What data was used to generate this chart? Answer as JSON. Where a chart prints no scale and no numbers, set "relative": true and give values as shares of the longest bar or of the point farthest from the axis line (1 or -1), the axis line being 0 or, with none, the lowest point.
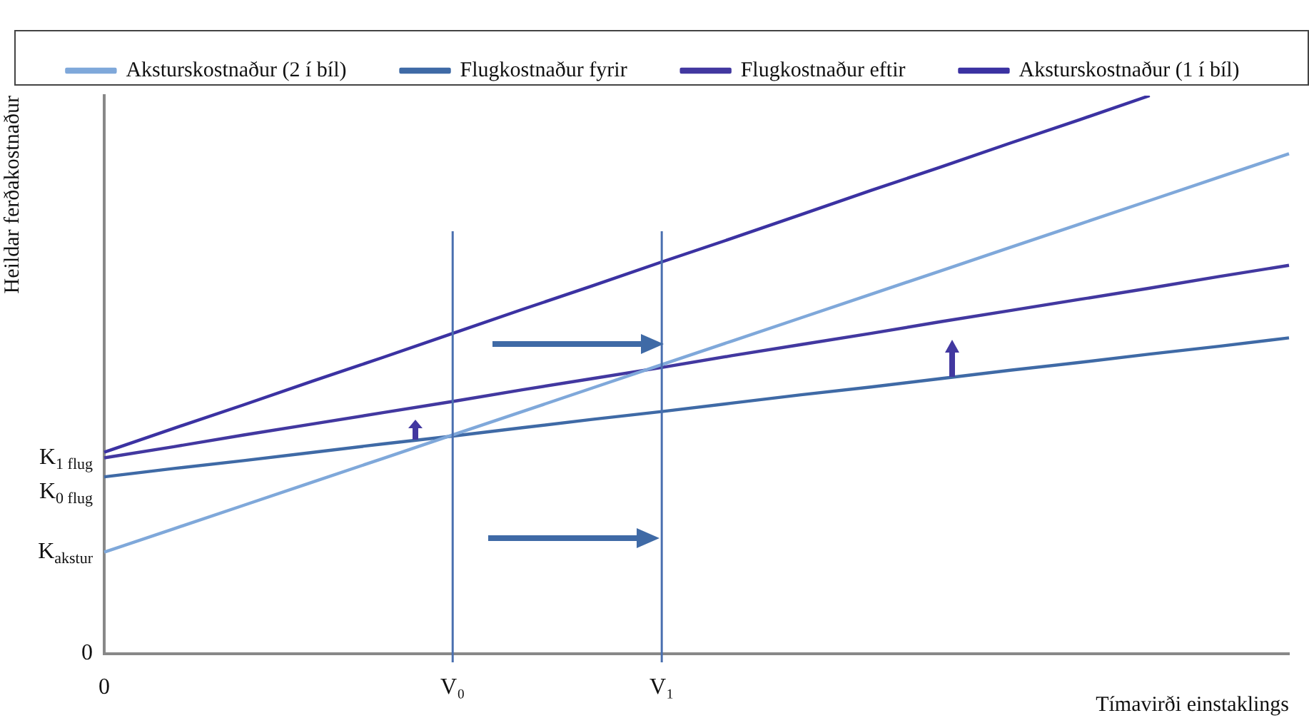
{
  "chart_data": {
    "type": "line",
    "relative": true,
    "ylabel": "Heildar ferðakostnaður",
    "xlabel": "Tímavirði einstaklings",
    "categories": [
      "0",
      null,
      null,
      null,
      null,
      "V₀",
      null,
      null,
      "V₁",
      null,
      null,
      null,
      null,
      null,
      null,
      null,
      null,
      null
    ],
    "series": [
      {
        "name": "Aksturskostnaður (2 í bíl)",
        "color": "#7fa8da",
        "values": [
          0.182,
          0.224,
          0.266,
          0.308,
          0.35,
          0.392,
          0.434,
          0.476,
          0.518,
          0.56,
          0.602,
          0.644,
          0.686,
          0.728,
          0.77,
          0.812,
          0.854,
          0.896
        ]
      },
      {
        "name": "Flugkostnaður fyrir",
        "color": "#3f6aa6",
        "values": [
          0.317,
          0.332,
          0.346,
          0.361,
          0.376,
          0.39,
          0.405,
          0.42,
          0.434,
          0.449,
          0.464,
          0.478,
          0.493,
          0.508,
          0.522,
          0.537,
          0.551,
          0.566
        ]
      },
      {
        "name": "Flugkostnaður eftir",
        "color": "#4238a0",
        "values": [
          0.351,
          0.371,
          0.392,
          0.412,
          0.432,
          0.452,
          0.473,
          0.493,
          0.513,
          0.534,
          0.554,
          0.574,
          0.595,
          0.615,
          0.635,
          0.655,
          0.676,
          0.696
        ]
      },
      {
        "name": "Aksturskostnaður (1 í bíl)",
        "color": "#3b32a2",
        "values": [
          0.361,
          0.404,
          0.446,
          0.489,
          0.531,
          0.574,
          0.617,
          0.659,
          0.702,
          0.744,
          0.787,
          0.83,
          0.872,
          0.915,
          0.957,
          1.0,
          null,
          null
        ]
      }
    ],
    "ref_lines": [
      {
        "axis": "x",
        "value": "V₀",
        "color": "#4a70b0"
      },
      {
        "axis": "x",
        "value": "V₁",
        "color": "#4a70b0"
      }
    ],
    "annotations": [
      "0",
      "K$_{1 flug}$",
      "K$_{0 flug}$",
      "K$_{akstur}$"
    ],
    "grid": false,
    "legend": "top",
    "marker": "none",
    "line_style": "solid"
  }
}
